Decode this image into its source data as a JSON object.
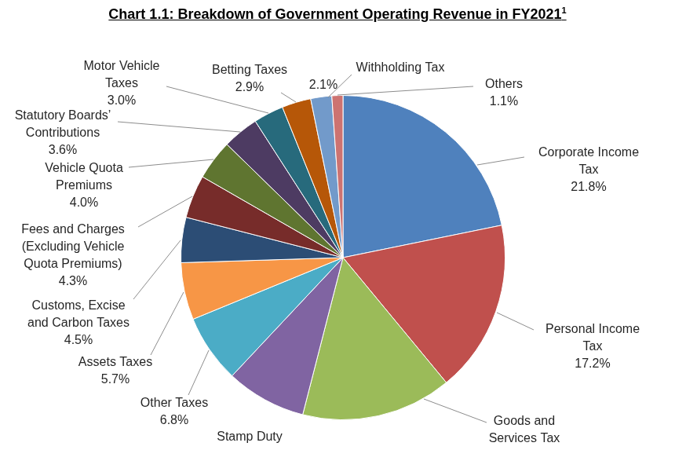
{
  "chart_data": {
    "type": "pie",
    "title": "Chart 1.1: Breakdown of Government Operating Revenue in FY2021",
    "title_superscript": "1",
    "categories": [
      "Corporate Income Tax",
      "Personal Income Tax",
      "Goods and Services Tax",
      "Stamp Duty",
      "Other Taxes",
      "Assets Taxes",
      "Customs, Excise and Carbon Taxes",
      "Fees and Charges (Excluding Vehicle Quota Premiums)",
      "Vehicle Quota Premiums",
      "Statutory Boards’ Contributions",
      "Motor Vehicle Taxes",
      "Betting Taxes",
      "Withholding Tax",
      "Others"
    ],
    "values": [
      21.8,
      17.2,
      15.0,
      8.0,
      6.8,
      5.7,
      4.5,
      4.3,
      4.0,
      3.6,
      3.0,
      2.9,
      2.1,
      1.1
    ],
    "value_labels": [
      "21.8%",
      "17.2%",
      null,
      null,
      "6.8%",
      "5.7%",
      "4.5%",
      "4.3%",
      "4.0%",
      "3.6%",
      "3.0%",
      "2.9%",
      "2.1%",
      "1.1%"
    ],
    "colors": [
      "#4f81bd",
      "#c0504d",
      "#9bbb59",
      "#8064a2",
      "#4bacc6",
      "#f79646",
      "#2c4d75",
      "#772c2a",
      "#5f7530",
      "#4d3b62",
      "#276a7c",
      "#b65708",
      "#729aca",
      "#cd7371"
    ],
    "data_labels": true
  }
}
